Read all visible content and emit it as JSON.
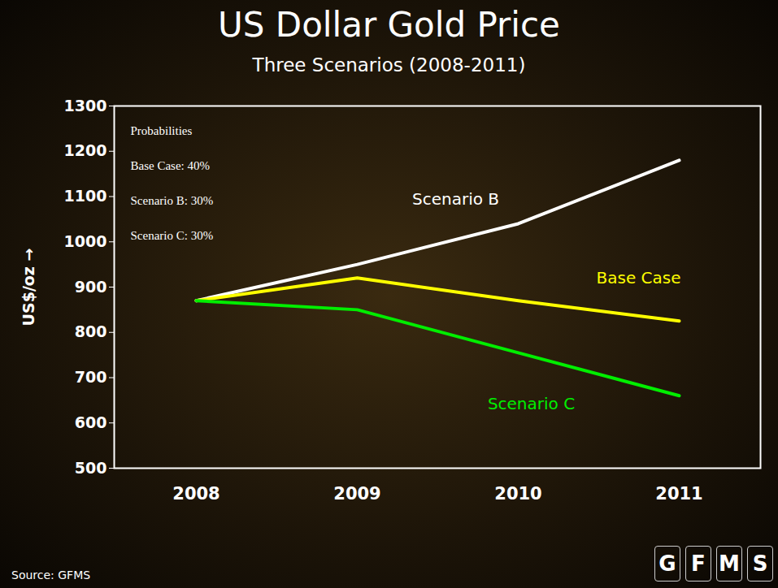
{
  "chart_data": {
    "type": "line",
    "title": "US Dollar Gold Price",
    "subtitle": "Three Scenarios (2008-2011)",
    "y_label": "US$/oz",
    "categories": [
      "2008",
      "2009",
      "2010",
      "2011"
    ],
    "series": [
      {
        "name": "Scenario B",
        "color": "#ffffff",
        "values": [
          870,
          950,
          1040,
          1180
        ]
      },
      {
        "name": "Base Case",
        "color": "#ffff00",
        "values": [
          870,
          920,
          870,
          825
        ]
      },
      {
        "name": "Scenario C",
        "color": "#00ee00",
        "values": [
          870,
          850,
          755,
          660
        ]
      }
    ],
    "ylim": [
      500,
      1300
    ],
    "yticks": [
      500,
      600,
      700,
      800,
      900,
      1000,
      1100,
      1200,
      1300
    ],
    "grid": false,
    "annotations": [
      "Probabilities",
      "Base Case: 40%",
      "Scenario B: 30%",
      "Scenario C: 30%"
    ],
    "source": "Source: GFMS",
    "logo": "GFMS"
  }
}
